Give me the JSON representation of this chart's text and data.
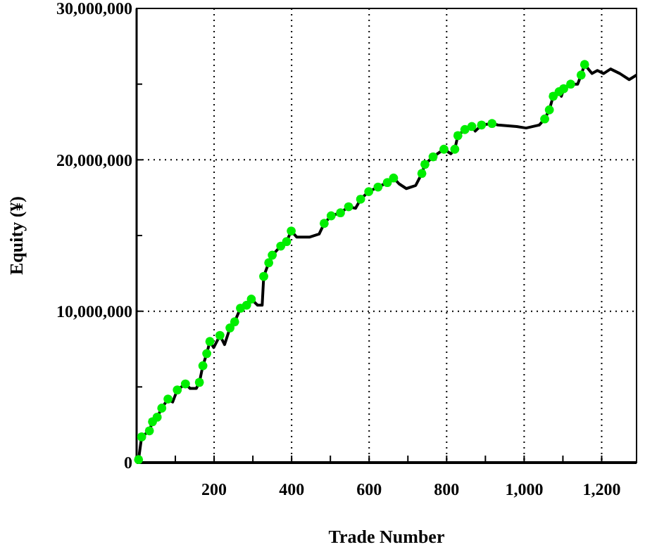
{
  "chart_data": {
    "type": "line",
    "xlabel": "Trade Number",
    "ylabel": "Equity (¥)",
    "xlim": [
      0,
      1290
    ],
    "xticks": [
      {
        "value": 100,
        "label": null
      },
      {
        "value": 200,
        "label": "200"
      },
      {
        "value": 300,
        "label": null
      },
      {
        "value": 400,
        "label": "400"
      },
      {
        "value": 500,
        "label": null
      },
      {
        "value": 600,
        "label": "600"
      },
      {
        "value": 700,
        "label": null
      },
      {
        "value": 800,
        "label": "800"
      },
      {
        "value": 900,
        "label": null
      },
      {
        "value": 1000,
        "label": "1,000"
      },
      {
        "value": 1100,
        "label": null
      },
      {
        "value": 1200,
        "label": "1,200"
      }
    ],
    "ylim": [
      0,
      30000000
    ],
    "yticks": [
      {
        "value": 0,
        "label": "0"
      },
      {
        "value": 5000000,
        "label": null
      },
      {
        "value": 10000000,
        "label": "10,000,000"
      },
      {
        "value": 15000000,
        "label": null
      },
      {
        "value": 20000000,
        "label": "20,000,000"
      },
      {
        "value": 25000000,
        "label": null
      },
      {
        "value": 30000000,
        "label": "30,000,000"
      }
    ],
    "grid": true,
    "line_style": "solid",
    "series": [
      {
        "color": "#000000",
        "marker": "none",
        "x": [
          5,
          13,
          33,
          41,
          53,
          65,
          81,
          93,
          105,
          126,
          138,
          154,
          162,
          171,
          181,
          189,
          199,
          215,
          227,
          241,
          253,
          268,
          284,
          296,
          312,
          324,
          328,
          341,
          350,
          372,
          387,
          399,
          413,
          447,
          471,
          484,
          502,
          526,
          547,
          565,
          578,
          599,
          623,
          647,
          663,
          678,
          696,
          720,
          736,
          744,
          765,
          793,
          811,
          821,
          829,
          847,
          865,
          874,
          890,
          917,
          932,
          981,
          1005,
          1039,
          1053,
          1065,
          1075,
          1090,
          1096,
          1102,
          1120,
          1138,
          1147,
          1156,
          1175,
          1189,
          1205,
          1223,
          1247,
          1271,
          1290
        ],
        "values": [
          200000,
          1700000,
          2100000,
          2700000,
          3000000,
          3600000,
          4200000,
          4000000,
          4800000,
          5200000,
          4900000,
          4900000,
          5300000,
          6400000,
          7200000,
          8000000,
          7600000,
          8400000,
          7800000,
          8900000,
          9300000,
          10200000,
          10400000,
          10800000,
          10400000,
          10400000,
          12300000,
          13200000,
          13700000,
          14300000,
          14600000,
          15300000,
          14900000,
          14900000,
          15100000,
          15800000,
          16300000,
          16500000,
          16900000,
          16800000,
          17400000,
          17900000,
          18200000,
          18500000,
          18800000,
          18400000,
          18100000,
          18300000,
          19100000,
          19700000,
          20200000,
          20700000,
          20400000,
          20700000,
          21600000,
          22000000,
          22200000,
          21900000,
          22300000,
          22400000,
          22300000,
          22200000,
          22100000,
          22300000,
          22700000,
          23300000,
          24200000,
          24500000,
          24200000,
          24700000,
          25000000,
          25000000,
          25600000,
          26300000,
          25700000,
          25900000,
          25700000,
          26000000,
          25700000,
          25300000,
          25600000
        ]
      },
      {
        "type": "scatter",
        "color": "#00ee00",
        "marker": "circle",
        "x": [
          5,
          13,
          33,
          41,
          53,
          65,
          81,
          105,
          126,
          162,
          171,
          181,
          189,
          215,
          241,
          253,
          268,
          284,
          296,
          328,
          341,
          350,
          372,
          387,
          399,
          484,
          502,
          526,
          547,
          578,
          599,
          623,
          647,
          663,
          736,
          744,
          765,
          793,
          821,
          829,
          847,
          865,
          890,
          917,
          1053,
          1065,
          1075,
          1090,
          1102,
          1120,
          1147,
          1156
        ],
        "values": [
          200000,
          1700000,
          2100000,
          2700000,
          3000000,
          3600000,
          4200000,
          4800000,
          5200000,
          5300000,
          6400000,
          7200000,
          8000000,
          8400000,
          8900000,
          9300000,
          10200000,
          10400000,
          10800000,
          12300000,
          13200000,
          13700000,
          14300000,
          14600000,
          15300000,
          15800000,
          16300000,
          16500000,
          16900000,
          17400000,
          17900000,
          18200000,
          18500000,
          18800000,
          19100000,
          19700000,
          20200000,
          20700000,
          20700000,
          21600000,
          22000000,
          22200000,
          22300000,
          22400000,
          22700000,
          23300000,
          24200000,
          24500000,
          24700000,
          25000000,
          25600000,
          26300000
        ]
      }
    ]
  }
}
